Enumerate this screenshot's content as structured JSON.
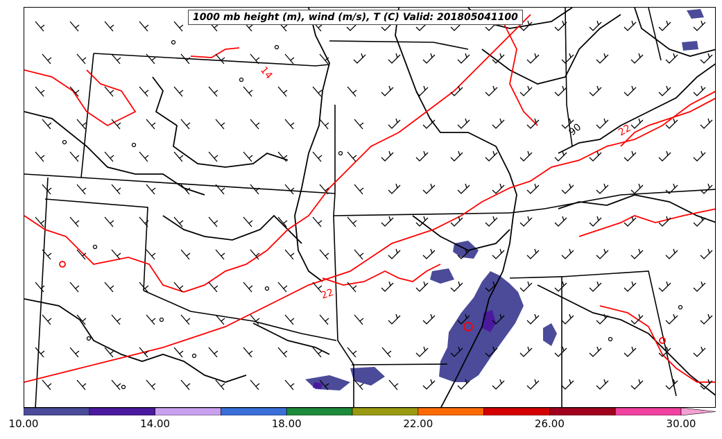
{
  "title": "1000 mb height (m), wind (m/s), T (C) Valid: 201805041100",
  "contour_labels": {
    "temp_upper_left": "14",
    "temp_center": "22",
    "temp_upper_right": "22",
    "height_upper_right": "90"
  },
  "colorbar": {
    "ticks": [
      "10.00",
      "14.00",
      "18.00",
      "22.00",
      "26.00",
      "30.00"
    ],
    "tick_values": [
      10,
      14,
      18,
      22,
      26,
      30
    ],
    "min": 10,
    "max": 32,
    "bins": [
      {
        "from": 10,
        "to": 12,
        "color": "#4b4b9a"
      },
      {
        "from": 12,
        "to": 14,
        "color": "#4a1a9e"
      },
      {
        "from": 14,
        "to": 16,
        "color": "#c9a0ee"
      },
      {
        "from": 16,
        "to": 18,
        "color": "#3a6fd8"
      },
      {
        "from": 18,
        "to": 20,
        "color": "#1e8a3c"
      },
      {
        "from": 20,
        "to": 22,
        "color": "#9a9a10"
      },
      {
        "from": 22,
        "to": 24,
        "color": "#ff6a00"
      },
      {
        "from": 24,
        "to": 26,
        "color": "#d40000"
      },
      {
        "from": 26,
        "to": 28,
        "color": "#a0001e"
      },
      {
        "from": 28,
        "to": 30,
        "color": "#f040a0"
      },
      {
        "from": 30,
        "to": 32,
        "color": "#f4a0d0"
      }
    ]
  },
  "colors": {
    "temperature_contour": "#ff0000",
    "height_contour": "#000000",
    "wind_speed_shading": "#4b4b9a",
    "wind_speed_strong": "#4a1a9e"
  }
}
